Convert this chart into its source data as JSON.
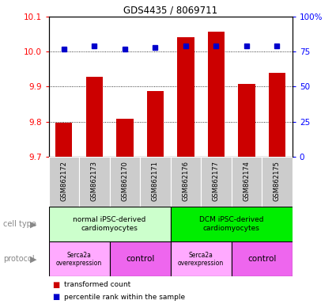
{
  "title": "GDS4435 / 8069711",
  "samples": [
    "GSM862172",
    "GSM862173",
    "GSM862170",
    "GSM862171",
    "GSM862176",
    "GSM862177",
    "GSM862174",
    "GSM862175"
  ],
  "bar_values": [
    9.797,
    9.928,
    9.808,
    9.887,
    10.042,
    10.058,
    9.908,
    9.94
  ],
  "blue_dot_percentile": [
    77,
    79,
    77,
    78,
    79,
    79,
    79,
    79
  ],
  "ylim_left": [
    9.7,
    10.1
  ],
  "ylim_right": [
    0,
    100
  ],
  "yticks_left": [
    9.7,
    9.8,
    9.9,
    10.0,
    10.1
  ],
  "yticks_right": [
    0,
    25,
    50,
    75,
    100
  ],
  "bar_color": "#cc0000",
  "dot_color": "#0000cc",
  "cell_type_groups": [
    {
      "label": "normal iPSC-derived\ncardiomyocytes",
      "start": 0,
      "end": 3,
      "color": "#ccffcc"
    },
    {
      "label": "DCM iPSC-derived\ncardiomyocytes",
      "start": 4,
      "end": 7,
      "color": "#00ee00"
    }
  ],
  "protocol_groups": [
    {
      "label": "Serca2a\noverexpression",
      "start": 0,
      "end": 1,
      "color": "#ffaaff"
    },
    {
      "label": "control",
      "start": 2,
      "end": 3,
      "color": "#ee66ee"
    },
    {
      "label": "Serca2a\noverexpression",
      "start": 4,
      "end": 5,
      "color": "#ffaaff"
    },
    {
      "label": "control",
      "start": 6,
      "end": 7,
      "color": "#ee66ee"
    }
  ],
  "cell_type_label": "cell type",
  "protocol_label": "protocol",
  "legend_bar_label": "transformed count",
  "legend_dot_label": "percentile rank within the sample",
  "bg_color": "#ffffff",
  "sample_box_color": "#cccccc"
}
